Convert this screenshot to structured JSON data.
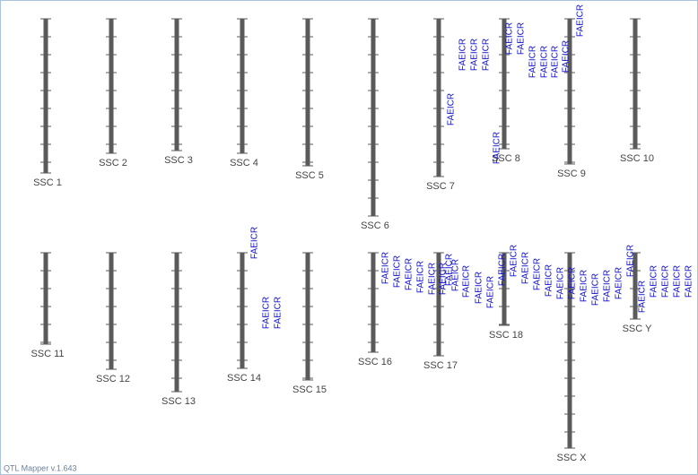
{
  "chromosomes": [
    {
      "label": "SSC 1"
    },
    {
      "label": "SSC 2"
    },
    {
      "label": "SSC 3"
    },
    {
      "label": "SSC 4"
    },
    {
      "label": "SSC 5"
    },
    {
      "label": "SSC 6"
    },
    {
      "label": "SSC 7"
    },
    {
      "label": "SSC 8"
    },
    {
      "label": "SSC 9"
    },
    {
      "label": "SSC 10"
    },
    {
      "label": "SSC 11"
    },
    {
      "label": "SSC 12"
    },
    {
      "label": "SSC 13"
    },
    {
      "label": "SSC 14"
    },
    {
      "label": "SSC 15"
    },
    {
      "label": "SSC 16"
    },
    {
      "label": "SSC 17"
    },
    {
      "label": "SSC 18"
    },
    {
      "label": "SSC X"
    },
    {
      "label": "SSC Y"
    }
  ],
  "qtl_labels": [
    "FAEICR",
    "FAEICR",
    "FAEICR",
    "FAEICR",
    "FAEICR",
    "FAEICR",
    "FAEICR",
    "FAEICR",
    "FAEICR",
    "FAEICR",
    "FAEICR",
    "FAEICR",
    "FAEICR",
    "FAEICR",
    "FAEICR",
    "FAEICR",
    "FAEICR",
    "FAEICR",
    "FAEICR",
    "FAEICR",
    "FAEICR",
    "FAEICR",
    "FAEICR",
    "FAEICR",
    "FAEICR",
    "FAEICR",
    "FAEICR",
    "FAEICR",
    "FAEICR",
    "FAEICR",
    "FAEICR",
    "FAEICR",
    "FAEICR",
    "FAEICR",
    "FAEICR",
    "FAEICR",
    "FAEICR",
    "FAEICR",
    "FAEICR",
    "FAEICR",
    "FAEICR",
    "FAEICR",
    "FAEICR"
  ],
  "footer": "QTL Mapper v.1.643"
}
